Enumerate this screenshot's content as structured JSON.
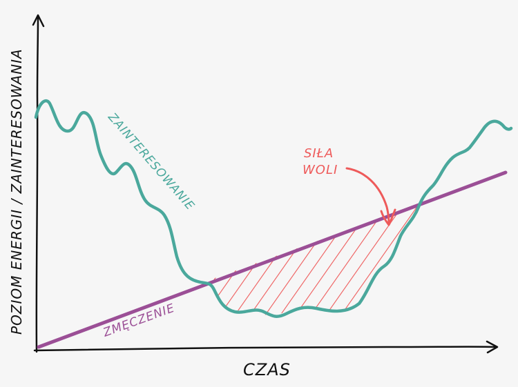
{
  "labels": {
    "y_axis": "POZIOM ENERGII / ZAINTERESOWANIA",
    "x_axis": "CZAS",
    "interest": "ZAINTERESOWANIE",
    "fatigue": "ZMĘCZENIE",
    "willpower_line1": "SIŁA",
    "willpower_line2": "WOLI"
  },
  "colors": {
    "background": "#f6f6f6",
    "axes": "#111111",
    "interest": "#4aa89c",
    "fatigue": "#9b4f96",
    "willpower": "#ee5a5a"
  }
}
